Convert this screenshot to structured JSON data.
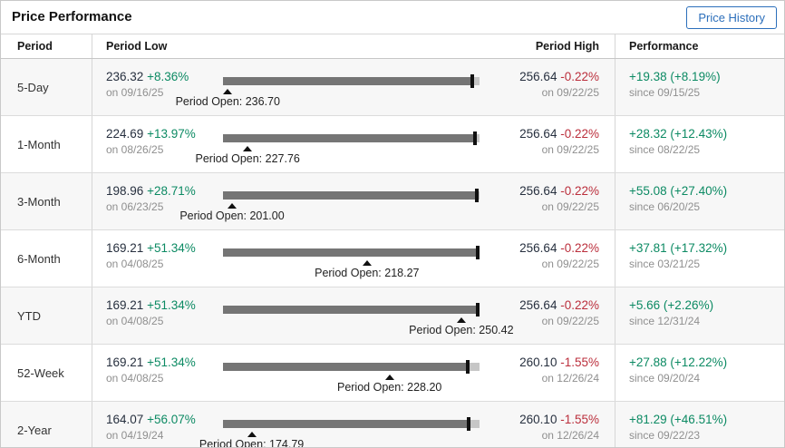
{
  "header": {
    "title": "Price Performance",
    "button_label": "Price History"
  },
  "columns": {
    "period": "Period",
    "low": "Period Low",
    "high": "Period High",
    "performance": "Performance"
  },
  "current_price": 256.07,
  "colors": {
    "positive": "#0c8a63",
    "negative": "#bb2f3c",
    "bar_dark": "#757575",
    "bar_light": "#c6c6c6",
    "accent_blue": "#2c6fbb"
  },
  "rows": [
    {
      "period": "5-Day",
      "low": {
        "value": "236.32",
        "change": "+8.36%",
        "date": "on 09/16/25",
        "value_num": 236.32
      },
      "open": {
        "label": "Period Open: 236.70",
        "value_num": 236.7
      },
      "high": {
        "value": "256.64",
        "change": "-0.22%",
        "date": "on 09/22/25",
        "value_num": 256.64
      },
      "performance": {
        "change": "+19.38 (+8.19%)",
        "since": "since 09/15/25"
      }
    },
    {
      "period": "1-Month",
      "low": {
        "value": "224.69",
        "change": "+13.97%",
        "date": "on 08/26/25",
        "value_num": 224.69
      },
      "open": {
        "label": "Period Open: 227.76",
        "value_num": 227.76
      },
      "high": {
        "value": "256.64",
        "change": "-0.22%",
        "date": "on 09/22/25",
        "value_num": 256.64
      },
      "performance": {
        "change": "+28.32 (+12.43%)",
        "since": "since 08/22/25"
      }
    },
    {
      "period": "3-Month",
      "low": {
        "value": "198.96",
        "change": "+28.71%",
        "date": "on 06/23/25",
        "value_num": 198.96
      },
      "open": {
        "label": "Period Open: 201.00",
        "value_num": 201.0
      },
      "high": {
        "value": "256.64",
        "change": "-0.22%",
        "date": "on 09/22/25",
        "value_num": 256.64
      },
      "performance": {
        "change": "+55.08 (+27.40%)",
        "since": "since 06/20/25"
      }
    },
    {
      "period": "6-Month",
      "low": {
        "value": "169.21",
        "change": "+51.34%",
        "date": "on 04/08/25",
        "value_num": 169.21
      },
      "open": {
        "label": "Period Open: 218.27",
        "value_num": 218.27
      },
      "high": {
        "value": "256.64",
        "change": "-0.22%",
        "date": "on 09/22/25",
        "value_num": 256.64
      },
      "performance": {
        "change": "+37.81 (+17.32%)",
        "since": "since 03/21/25"
      }
    },
    {
      "period": "YTD",
      "low": {
        "value": "169.21",
        "change": "+51.34%",
        "date": "on 04/08/25",
        "value_num": 169.21
      },
      "open": {
        "label": "Period Open: 250.42",
        "value_num": 250.42
      },
      "high": {
        "value": "256.64",
        "change": "-0.22%",
        "date": "on 09/22/25",
        "value_num": 256.64
      },
      "performance": {
        "change": "+5.66 (+2.26%)",
        "since": "since 12/31/24"
      }
    },
    {
      "period": "52-Week",
      "low": {
        "value": "169.21",
        "change": "+51.34%",
        "date": "on 04/08/25",
        "value_num": 169.21
      },
      "open": {
        "label": "Period Open: 228.20",
        "value_num": 228.2
      },
      "high": {
        "value": "260.10",
        "change": "-1.55%",
        "date": "on 12/26/24",
        "value_num": 260.1
      },
      "performance": {
        "change": "+27.88 (+12.22%)",
        "since": "since 09/20/24"
      }
    },
    {
      "period": "2-Year",
      "low": {
        "value": "164.07",
        "change": "+56.07%",
        "date": "on 04/19/24",
        "value_num": 164.07
      },
      "open": {
        "label": "Period Open: 174.79",
        "value_num": 174.79
      },
      "high": {
        "value": "260.10",
        "change": "-1.55%",
        "date": "on 12/26/24",
        "value_num": 260.1
      },
      "performance": {
        "change": "+81.29 (+46.51%)",
        "since": "since 09/22/23"
      }
    }
  ]
}
